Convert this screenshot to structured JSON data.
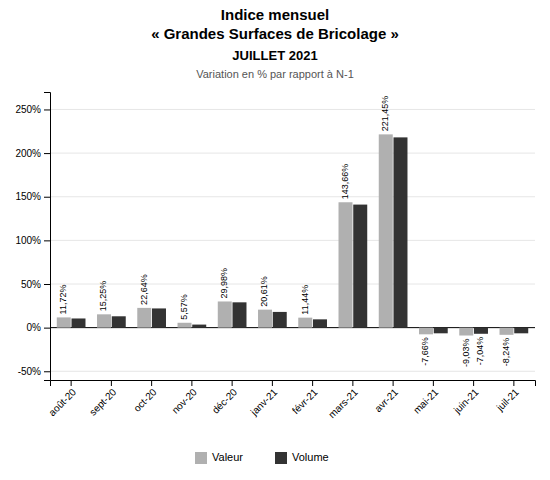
{
  "chart_data": {
    "type": "bar",
    "title": [
      "Indice mensuel",
      "« Grandes Surfaces de Bricolage »"
    ],
    "subtitle": "JUILLET 2021",
    "annotation": "Variation en % par rapport à N-1",
    "categories": [
      "août-20",
      "sept-20",
      "oct-20",
      "nov-20",
      "déc-20",
      "janv-21",
      "févr-21",
      "mars-21",
      "avr-21",
      "mai-21",
      "juin-21",
      "juil-21"
    ],
    "series": [
      {
        "name": "Valeur",
        "color": "#b0b0b0",
        "values": [
          11.72,
          15.25,
          22.64,
          5.57,
          29.98,
          20.61,
          11.44,
          143.66,
          221.45,
          -7.66,
          -9.03,
          -8.24
        ],
        "value_labels": [
          "11,72%",
          "15,25%",
          "22,64%",
          "5,57%",
          "29,98%",
          "20,61%",
          "11,44%",
          "143,66%",
          "221,45%",
          "-7,66%",
          "-9,03%",
          "-8,24%"
        ]
      },
      {
        "name": "Volume",
        "color": "#333333",
        "values": [
          10.5,
          13.0,
          22.0,
          3.5,
          29.0,
          18.0,
          9.5,
          141.0,
          218.0,
          -6.5,
          -7.04,
          -6.5
        ],
        "value_labels": [
          null,
          null,
          null,
          null,
          null,
          null,
          null,
          null,
          null,
          null,
          "-7,04%",
          null
        ]
      }
    ],
    "ylim": [
      -60,
      270
    ],
    "yticks": [
      {
        "value": -50,
        "label": "-50%"
      },
      {
        "value": 0,
        "label": "0%"
      },
      {
        "value": 50,
        "label": "50%"
      },
      {
        "value": 100,
        "label": "100%"
      },
      {
        "value": 150,
        "label": "150%"
      },
      {
        "value": 200,
        "label": "200%"
      },
      {
        "value": 250,
        "label": "250%"
      }
    ],
    "grid": true,
    "legend": "bottom"
  }
}
